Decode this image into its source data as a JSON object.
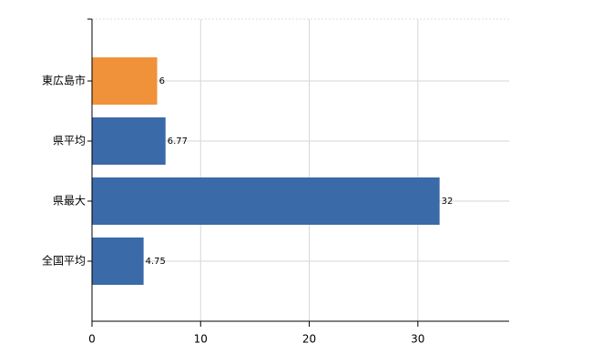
{
  "chart_data": {
    "type": "bar",
    "orientation": "horizontal",
    "categories": [
      "東広島市",
      "県平均",
      "県最大",
      "全国平均"
    ],
    "values": [
      6,
      6.77,
      32,
      4.75
    ],
    "colors": [
      "#f0923a",
      "#3a6aa8",
      "#3a6aa8",
      "#3a6aa8"
    ],
    "xlim": [
      0,
      38.4
    ],
    "xticks": [
      0,
      10,
      20,
      30
    ],
    "grid": true
  }
}
